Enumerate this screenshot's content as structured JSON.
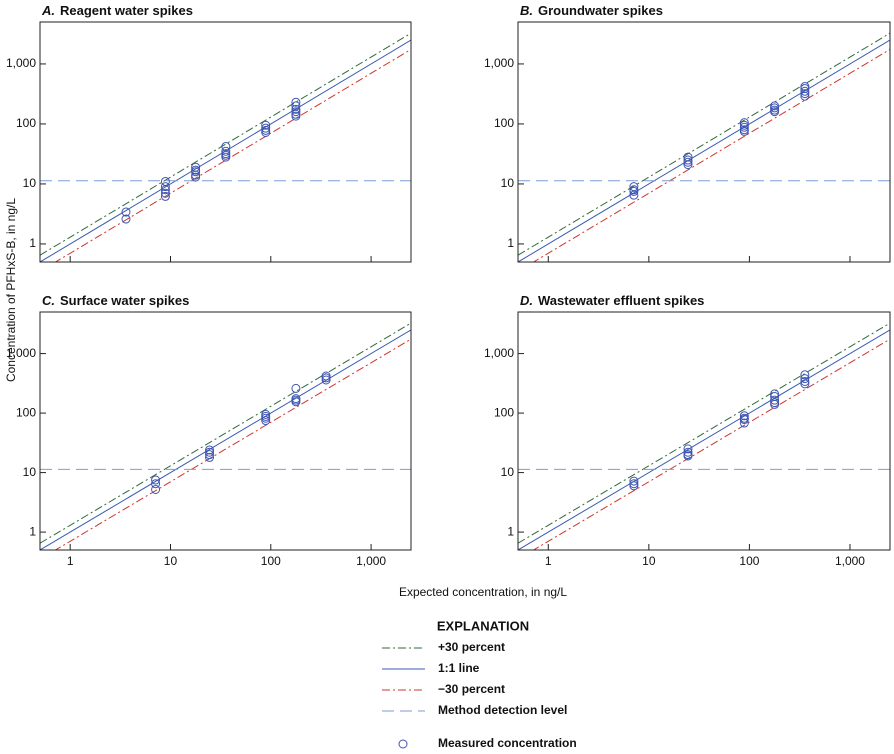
{
  "figure": {
    "ylabel": "Concentration of PFHxS-B, in ng/L",
    "xlabel": "Expected concentration, in ng/L"
  },
  "legend": {
    "title": "EXPLANATION",
    "entries": [
      {
        "label": "+30 percent",
        "color": "#2e6b3a",
        "dash": "8 3 2 3"
      },
      {
        "label": "1:1 line",
        "color": "#3a5bb5",
        "dash": "none"
      },
      {
        "label": "−30 percent",
        "color": "#d0342c",
        "dash": "8 3 2 3"
      },
      {
        "label": "Method detection level",
        "color": "#7f9bd6",
        "dash": "12 6"
      },
      {
        "label": "Measured concentration",
        "color": "#3f55b0",
        "marker": "circle"
      }
    ]
  },
  "chart_data": [
    {
      "type": "scatter",
      "panel": "A.",
      "title": "Reagent water spikes",
      "log": true,
      "xlim": [
        0.5,
        2500
      ],
      "ylim": [
        0.5,
        5000
      ],
      "xticks": [
        1,
        10,
        100,
        {
          "value": 1000,
          "label": "1,000"
        }
      ],
      "yticks": [
        1,
        10,
        100,
        {
          "value": 1000,
          "label": "1,000"
        }
      ],
      "lines": [
        {
          "color": "#2e6b3a",
          "dash": "8 3 2 3",
          "x": [
            0.5,
            2500
          ],
          "values": [
            0.65,
            3250
          ]
        },
        {
          "color": "#3a5bb5",
          "dash": "none",
          "x": [
            0.5,
            2500
          ],
          "values": [
            0.5,
            2500
          ]
        },
        {
          "color": "#d0342c",
          "dash": "8 3 2 3",
          "x": [
            0.5,
            2500
          ],
          "values": [
            0.35,
            1750
          ]
        },
        {
          "color": "#7f9bd6",
          "dash": "12 6",
          "x": [
            0.5,
            2500
          ],
          "values": [
            11.3,
            11.3
          ]
        }
      ],
      "points": {
        "color": "#3f55b0",
        "x": [
          3.6,
          3.6,
          8.9,
          8.9,
          8.9,
          8.9,
          8.9,
          17.8,
          17.8,
          17.8,
          17.8,
          17.8,
          35.6,
          35.6,
          35.6,
          35.6,
          35.6,
          89,
          89,
          89,
          89,
          178,
          178,
          178,
          178,
          178,
          178
        ],
        "values": [
          3.4,
          2.6,
          11,
          9,
          8,
          7,
          6.2,
          19,
          17,
          16,
          14,
          13,
          42,
          35,
          32,
          30,
          28,
          95,
          85,
          78,
          72,
          230,
          200,
          175,
          160,
          145,
          135
        ]
      }
    },
    {
      "type": "scatter",
      "panel": "B.",
      "title": "Groundwater spikes",
      "log": true,
      "xlim": [
        0.5,
        2500
      ],
      "ylim": [
        0.5,
        5000
      ],
      "xticks": [
        1,
        10,
        100,
        {
          "value": 1000,
          "label": "1,000"
        }
      ],
      "yticks": [
        1,
        10,
        100,
        {
          "value": 1000,
          "label": "1,000"
        }
      ],
      "lines": [
        {
          "color": "#2e6b3a",
          "dash": "8 3 2 3",
          "x": [
            0.5,
            2500
          ],
          "values": [
            0.65,
            3250
          ]
        },
        {
          "color": "#3a5bb5",
          "dash": "none",
          "x": [
            0.5,
            2500
          ],
          "values": [
            0.5,
            2500
          ]
        },
        {
          "color": "#d0342c",
          "dash": "8 3 2 3",
          "x": [
            0.5,
            2500
          ],
          "values": [
            0.35,
            1750
          ]
        },
        {
          "color": "#7f9bd6",
          "dash": "12 6",
          "x": [
            0.5,
            2500
          ],
          "values": [
            11.3,
            11.3
          ]
        }
      ],
      "points": {
        "color": "#3f55b0",
        "x": [
          7.1,
          7.1,
          7.1,
          7.1,
          24.5,
          24.5,
          24.5,
          24.5,
          89,
          89,
          89,
          89,
          89,
          178,
          178,
          178,
          178,
          356,
          356,
          356,
          356,
          356
        ],
        "values": [
          9,
          8,
          7.5,
          6.5,
          28,
          25,
          23,
          21,
          105,
          95,
          88,
          80,
          75,
          200,
          185,
          170,
          160,
          420,
          390,
          350,
          320,
          290
        ]
      }
    },
    {
      "type": "scatter",
      "panel": "C.",
      "title": "Surface water spikes",
      "log": true,
      "xlim": [
        0.5,
        2500
      ],
      "ylim": [
        0.5,
        5000
      ],
      "xticks": [
        1,
        10,
        100,
        {
          "value": 1000,
          "label": "1,000"
        }
      ],
      "yticks": [
        1,
        10,
        100,
        {
          "value": 1000,
          "label": "1,000"
        }
      ],
      "lines": [
        {
          "color": "#2e6b3a",
          "dash": "8 3 2 3",
          "x": [
            0.5,
            2500
          ],
          "values": [
            0.65,
            3250
          ]
        },
        {
          "color": "#3a5bb5",
          "dash": "none",
          "x": [
            0.5,
            2500
          ],
          "values": [
            0.5,
            2500
          ]
        },
        {
          "color": "#d0342c",
          "dash": "8 3 2 3",
          "x": [
            0.5,
            2500
          ],
          "values": [
            0.35,
            1750
          ]
        },
        {
          "color": "#7f9bd6",
          "dash": "12 6",
          "x": [
            0.5,
            2500
          ],
          "values": [
            11.3,
            11.3
          ]
        }
      ],
      "points": {
        "color": "#3f55b0",
        "x": [
          7.1,
          7.1,
          7.1,
          24.5,
          24.5,
          24.5,
          24.5,
          89,
          89,
          89,
          89,
          178,
          178,
          178,
          178,
          356,
          356,
          356
        ],
        "values": [
          7.5,
          6.5,
          5.2,
          24,
          22,
          20,
          18,
          95,
          88,
          82,
          75,
          260,
          175,
          165,
          155,
          420,
          390,
          360
        ]
      }
    },
    {
      "type": "scatter",
      "panel": "D.",
      "title": "Wastewater effluent spikes",
      "log": true,
      "xlim": [
        0.5,
        2500
      ],
      "ylim": [
        0.5,
        5000
      ],
      "xticks": [
        1,
        10,
        100,
        {
          "value": 1000,
          "label": "1,000"
        }
      ],
      "yticks": [
        1,
        10,
        100,
        {
          "value": 1000,
          "label": "1,000"
        }
      ],
      "lines": [
        {
          "color": "#2e6b3a",
          "dash": "8 3 2 3",
          "x": [
            0.5,
            2500
          ],
          "values": [
            0.65,
            3250
          ]
        },
        {
          "color": "#3a5bb5",
          "dash": "none",
          "x": [
            0.5,
            2500
          ],
          "values": [
            0.5,
            2500
          ]
        },
        {
          "color": "#d0342c",
          "dash": "8 3 2 3",
          "x": [
            0.5,
            2500
          ],
          "values": [
            0.35,
            1750
          ]
        },
        {
          "color": "#7f9bd6",
          "dash": "12 6",
          "x": [
            0.5,
            2500
          ],
          "values": [
            11.3,
            11.3
          ]
        }
      ],
      "points": {
        "color": "#3f55b0",
        "x": [
          7.1,
          7.1,
          7.1,
          24.5,
          24.5,
          24.5,
          24.5,
          89,
          89,
          89,
          89,
          178,
          178,
          178,
          178,
          178,
          356,
          356,
          356,
          356
        ],
        "values": [
          7.2,
          6.5,
          6,
          25,
          22,
          20,
          19,
          90,
          82,
          78,
          68,
          210,
          190,
          165,
          150,
          140,
          440,
          380,
          340,
          310
        ]
      }
    }
  ]
}
